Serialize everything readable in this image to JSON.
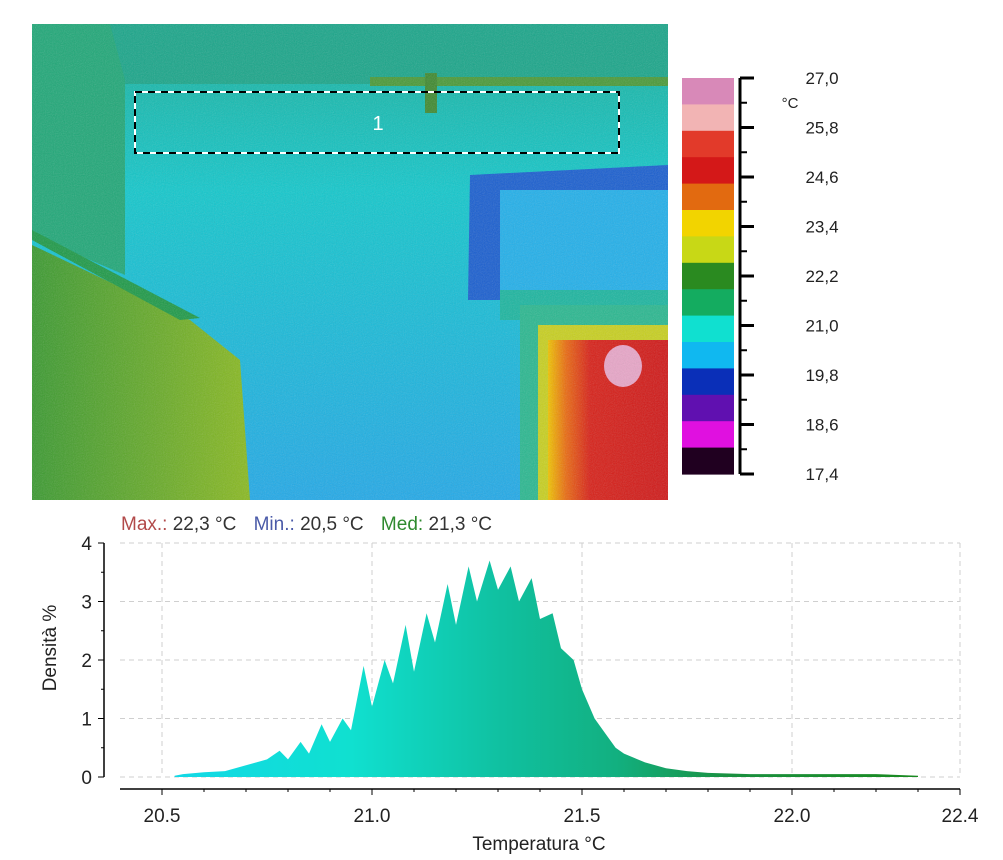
{
  "thermal_image": {
    "roi_label": "1"
  },
  "colorbar": {
    "unit": "°C",
    "ticks": [
      "27,0",
      "25,8",
      "24,6",
      "23,4",
      "22,2",
      "21,0",
      "19,8",
      "18,6",
      "17,4"
    ],
    "colors": [
      "#d889b8",
      "#f2b4b4",
      "#e23a2a",
      "#d41818",
      "#e26a10",
      "#f2d400",
      "#c8d816",
      "#2a8a20",
      "#14ac60",
      "#10e0d0",
      "#10b8f0",
      "#0a2fb8",
      "#6010b0",
      "#e010e0",
      "#200020"
    ]
  },
  "stats": {
    "max_label": "Max.:",
    "max_value": "22,3 °C",
    "min_label": "Min.:",
    "min_value": "20,5 °C",
    "mean_label": "Med:",
    "mean_value": "21,3 °C",
    "max_color": "#b24a4a",
    "min_color": "#4a5aa8",
    "mean_color": "#2f8a2f"
  },
  "chart_data": {
    "type": "area",
    "xlabel": "Temperatura °C",
    "ylabel": "Densità %",
    "xlim": [
      20.4,
      22.4
    ],
    "ylim": [
      0,
      4
    ],
    "xticks": [
      "20.5",
      "21.0",
      "21.5",
      "22.0",
      "22.4"
    ],
    "yticks": [
      "0",
      "1",
      "2",
      "3",
      "4"
    ],
    "grid": true,
    "series": [
      {
        "x": [
          20.53,
          20.55,
          20.6,
          20.65,
          20.7,
          20.75,
          20.78,
          20.8,
          20.83,
          20.85,
          20.88,
          20.9,
          20.93,
          20.95,
          20.98,
          21.0,
          21.03,
          21.05,
          21.08,
          21.1,
          21.13,
          21.15,
          21.18,
          21.2,
          21.23,
          21.25,
          21.28,
          21.3,
          21.33,
          21.35,
          21.38,
          21.4,
          21.43,
          21.45,
          21.48,
          21.5,
          21.53,
          21.55,
          21.58,
          21.6,
          21.65,
          21.7,
          21.75,
          21.8,
          21.9,
          22.0,
          22.1,
          22.2,
          22.3
        ],
        "y": [
          0.02,
          0.05,
          0.08,
          0.1,
          0.2,
          0.3,
          0.45,
          0.3,
          0.6,
          0.4,
          0.9,
          0.6,
          1.0,
          0.8,
          1.9,
          1.2,
          2.0,
          1.6,
          2.6,
          1.8,
          2.8,
          2.3,
          3.3,
          2.6,
          3.6,
          3.0,
          3.7,
          3.2,
          3.6,
          3.0,
          3.4,
          2.7,
          2.8,
          2.2,
          2.0,
          1.5,
          1.0,
          0.8,
          0.5,
          0.4,
          0.25,
          0.15,
          0.1,
          0.07,
          0.05,
          0.05,
          0.05,
          0.05,
          0.02
        ]
      }
    ]
  }
}
